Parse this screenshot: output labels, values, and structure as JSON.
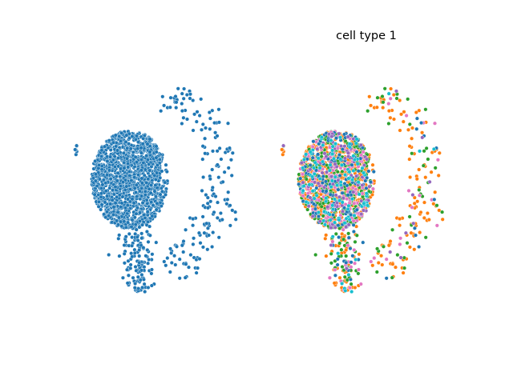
{
  "figure": {
    "background": "#ffffff"
  },
  "chart_data": [
    {
      "type": "scatter",
      "title": "",
      "xlabel": "",
      "ylabel": "",
      "axes_visible": false,
      "grid": false,
      "legend": "none",
      "marker": "dot",
      "marker_edge": "#ffffff",
      "series": [
        {
          "color": "#1f77b4",
          "x": [],
          "y": []
        }
      ],
      "clusters": [
        {
          "cx": 0.0,
          "cy": 0.0,
          "rx": 0.9,
          "ry": 1.0,
          "n": 1500
        },
        {
          "cx": 0.2,
          "cy": -1.6,
          "rx": 0.35,
          "ry": 0.7,
          "n": 130
        },
        {
          "cx": 2.0,
          "cy": 0.3,
          "rx": 1.4,
          "ry": 1.8,
          "n": 170
        }
      ]
    },
    {
      "type": "scatter",
      "title": "cell type 1",
      "xlabel": "",
      "ylabel": "",
      "axes_visible": false,
      "grid": false,
      "legend": "none",
      "marker": "dot",
      "marker_edge": "#ffffff",
      "series": [
        {
          "color": "#ff7f0e",
          "x": [],
          "y": []
        },
        {
          "color": "#2ca02c",
          "x": [],
          "y": []
        },
        {
          "color": "#e377c2",
          "x": [],
          "y": []
        },
        {
          "color": "#1f77b4",
          "x": [],
          "y": []
        },
        {
          "color": "#9467bd",
          "x": [],
          "y": []
        },
        {
          "color": "#17becf",
          "x": [],
          "y": []
        }
      ],
      "series_weights": [
        0.46,
        0.22,
        0.1,
        0.1,
        0.06,
        0.06
      ]
    }
  ]
}
